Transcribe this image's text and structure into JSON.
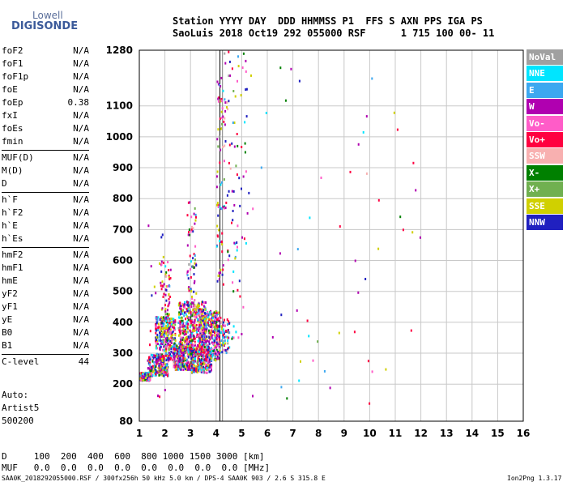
{
  "logo": {
    "line1": "Lowell",
    "line2": "DIGISONDE"
  },
  "header": {
    "labels": "Station YYYY DAY  DDD HHMMSS P1  FFS S AXN PPS IGA PS",
    "values": "SaoLuis 2018 Oct19 292 055000 RSF      1 715 100 00- 11"
  },
  "params": [
    [
      {
        "name": "foF2",
        "value": "N/A"
      },
      {
        "name": "foF1",
        "value": "N/A"
      },
      {
        "name": "foF1p",
        "value": "N/A"
      },
      {
        "name": "foE",
        "value": "N/A"
      },
      {
        "name": "foEp",
        "value": "0.38"
      },
      {
        "name": "fxI",
        "value": "N/A"
      },
      {
        "name": "foEs",
        "value": "N/A"
      },
      {
        "name": "fmin",
        "value": "N/A"
      }
    ],
    [
      {
        "name": "MUF(D)",
        "value": "N/A"
      },
      {
        "name": "M(D)",
        "value": "N/A"
      },
      {
        "name": "D",
        "value": "N/A"
      }
    ],
    [
      {
        "name": "h`F",
        "value": "N/A"
      },
      {
        "name": "h`F2",
        "value": "N/A"
      },
      {
        "name": "h`E",
        "value": "N/A"
      },
      {
        "name": "h`Es",
        "value": "N/A"
      }
    ],
    [
      {
        "name": "hmF2",
        "value": "N/A"
      },
      {
        "name": "hmF1",
        "value": "N/A"
      },
      {
        "name": "hmE",
        "value": "N/A"
      },
      {
        "name": "yF2",
        "value": "N/A"
      },
      {
        "name": "yF1",
        "value": "N/A"
      },
      {
        "name": "yE",
        "value": "N/A"
      },
      {
        "name": "B0",
        "value": "N/A"
      },
      {
        "name": "B1",
        "value": "N/A"
      }
    ],
    [
      {
        "name": "C-level",
        "value": "44"
      }
    ]
  ],
  "auto": {
    "line1": "Auto:",
    "line2": "Artist5",
    "line3": "500200"
  },
  "legend": [
    {
      "label": "NoVal",
      "color": "#a0a0a0"
    },
    {
      "label": "NNE",
      "color": "#00e5ff"
    },
    {
      "label": "E",
      "color": "#3ca8f0"
    },
    {
      "label": "W",
      "color": "#b000b0"
    },
    {
      "label": "Vo-",
      "color": "#ff5cc8"
    },
    {
      "label": "Vo+",
      "color": "#ff0040"
    },
    {
      "label": "SSW",
      "color": "#f8b0b0"
    },
    {
      "label": "X-",
      "color": "#008000"
    },
    {
      "label": "X+",
      "color": "#70b050"
    },
    {
      "label": "SSE",
      "color": "#d0d000"
    },
    {
      "label": "NNW",
      "color": "#2020c0"
    }
  ],
  "bottom_table": {
    "row1": "D     100  200  400  600  800 1000 1500 3000 [km]",
    "row2": "MUF   0.0  0.0  0.0  0.0  0.0  0.0  0.0  0.0 [MHz]"
  },
  "footer": "SAA0K_2018292055000.RSF / 300fx256h 50 kHz 5.0 km / DPS-4 SAA0K 903 / 2.6 S 315.8 E",
  "version": "Ion2Png 1.3.17",
  "chart_data": {
    "type": "scatter",
    "xlim": [
      1,
      16
    ],
    "ylim": [
      80,
      1280
    ],
    "x_ticks": [
      1,
      2,
      3,
      4,
      5,
      6,
      7,
      8,
      9,
      10,
      11,
      12,
      13,
      14,
      15,
      16
    ],
    "y_ticks": [
      80,
      200,
      300,
      400,
      500,
      600,
      700,
      800,
      900,
      1000,
      1100,
      1280
    ],
    "grid": true,
    "marker_lines": [
      {
        "x": 4.15,
        "color": "#000000"
      },
      {
        "x": 4.25,
        "color": "#808080"
      }
    ],
    "clusters": [
      {
        "x": [
          1.0,
          1.4
        ],
        "y": [
          215,
          240
        ],
        "n": 120
      },
      {
        "x": [
          1.3,
          2.1
        ],
        "y": [
          230,
          300
        ],
        "n": 200
      },
      {
        "x": [
          1.6,
          2.4
        ],
        "y": [
          280,
          420
        ],
        "n": 320
      },
      {
        "x": [
          2.3,
          3.1
        ],
        "y": [
          250,
          330
        ],
        "n": 320
      },
      {
        "x": [
          2.5,
          3.6
        ],
        "y": [
          300,
          470
        ],
        "n": 480
      },
      {
        "x": [
          3.0,
          3.8
        ],
        "y": [
          240,
          320
        ],
        "n": 300
      },
      {
        "x": [
          3.3,
          4.1
        ],
        "y": [
          280,
          440
        ],
        "n": 300
      },
      {
        "x": [
          3.9,
          4.5
        ],
        "y": [
          300,
          420
        ],
        "n": 100
      },
      {
        "x": [
          1.8,
          2.2
        ],
        "y": [
          400,
          600
        ],
        "n": 50
      },
      {
        "x": [
          2.8,
          3.2
        ],
        "y": [
          450,
          800
        ],
        "n": 60
      },
      {
        "x": [
          4.0,
          4.3
        ],
        "y": [
          500,
          1200
        ],
        "n": 70
      },
      {
        "x": [
          4.3,
          5.2
        ],
        "y": [
          350,
          1280
        ],
        "n": 90
      },
      {
        "x": [
          1.3,
          2.0
        ],
        "y": [
          130,
          750
        ],
        "n": 25
      },
      {
        "x": [
          5.2,
          12.2
        ],
        "y": [
          80,
          1280
        ],
        "n": 55
      }
    ]
  }
}
